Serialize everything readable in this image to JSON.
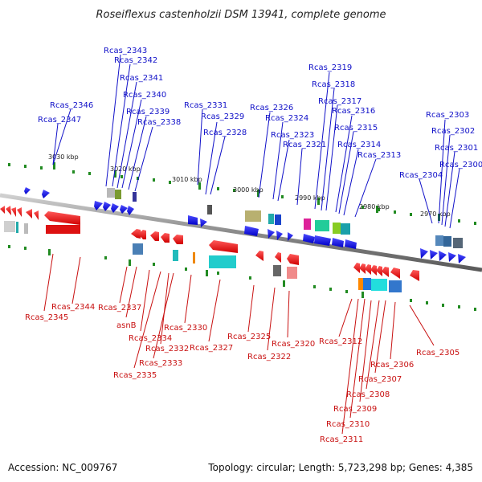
{
  "title": "Roseiflexus castenholzii DSM 13941, complete genome",
  "footer": {
    "accession": "Accession: NC_009767",
    "topology": "Topology: circular; Length: 5,723,298 bp; Genes: 4,385"
  },
  "colors": {
    "forward": "#1010dd",
    "reverse": "#ee1111",
    "label_forward": "#1010c8",
    "label_reverse": "#c81010",
    "backbone": "#8a8a8a",
    "tick": "#228b22"
  },
  "ticks": [
    "3030 kbp",
    "3020 kbp",
    "3010 kbp",
    "3000 kbp",
    "2990 kbp",
    "2980 kbp",
    "2970 kbp"
  ],
  "forward_labels": [
    "Rcas_2343",
    "Rcas_2342",
    "Rcas_2341",
    "Rcas_2340",
    "Rcas_2339",
    "Rcas_2338",
    "Rcas_2346",
    "Rcas_2347",
    "Rcas_2331",
    "Rcas_2329",
    "Rcas_2328",
    "Rcas_2326",
    "Rcas_2324",
    "Rcas_2323",
    "Rcas_2321",
    "Rcas_2319",
    "Rcas_2318",
    "Rcas_2317",
    "Rcas_2316",
    "Rcas_2315",
    "Rcas_2314",
    "Rcas_2313",
    "Rcas_2303",
    "Rcas_2302",
    "Rcas_2301",
    "Rcas_2300",
    "Rcas_2304"
  ],
  "reverse_labels": [
    "Rcas_2345",
    "Rcas_2344",
    "Rcas_2337",
    "asnB",
    "Rcas_2334",
    "Rcas_2335",
    "Rcas_2332",
    "Rcas_2333",
    "Rcas_2330",
    "Rcas_2327",
    "Rcas_2325",
    "Rcas_2322",
    "Rcas_2320",
    "Rcas_2312",
    "Rcas_2305",
    "Rcas_2306",
    "Rcas_2307",
    "Rcas_2308",
    "Rcas_2309",
    "Rcas_2310",
    "Rcas_2311"
  ]
}
